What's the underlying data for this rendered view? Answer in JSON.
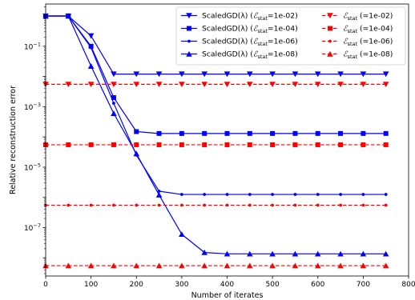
{
  "chart_data": {
    "type": "line",
    "title": "",
    "xlabel": "Number of iterates",
    "ylabel": "Relative reconstruction error",
    "xlim": [
      0,
      800
    ],
    "ylim": [
      2.5e-09,
      2.5
    ],
    "yscale": "log",
    "grid": false,
    "legend_position": "top-right",
    "legend_columns": 2,
    "x_ticks": [
      0,
      100,
      200,
      300,
      400,
      500,
      600,
      700,
      800
    ],
    "x_tick_labels": [
      "0",
      "100",
      "200",
      "300",
      "400",
      "500",
      "600",
      "700",
      "800"
    ],
    "y_ticks": [
      1e-07,
      1e-05,
      0.001,
      0.1
    ],
    "y_tick_labels": [
      {
        "base": "10",
        "exp": "−7"
      },
      {
        "base": "10",
        "exp": "−5"
      },
      {
        "base": "10",
        "exp": "−3"
      },
      {
        "base": "10",
        "exp": "−1"
      }
    ],
    "x": [
      0,
      50,
      100,
      150,
      200,
      250,
      300,
      350,
      400,
      450,
      500,
      550,
      600,
      650,
      700,
      750
    ],
    "series": [
      {
        "legend_prefix": "ScaledGD(λ) (",
        "legend_sub": "stat",
        "legend_suffix": "=1e-02)",
        "color": "#0000ff",
        "linestyle": "solid",
        "marker": "triangle-down",
        "values": [
          1,
          1,
          0.22,
          0.012,
          0.012,
          0.012,
          0.012,
          0.012,
          0.012,
          0.012,
          0.012,
          0.012,
          0.012,
          0.012,
          0.012,
          0.012
        ]
      },
      {
        "legend_prefix": "ScaledGD(λ) (",
        "legend_sub": "stat",
        "legend_suffix": "=1e-04)",
        "color": "#0000ff",
        "linestyle": "solid",
        "marker": "square",
        "values": [
          1,
          1,
          0.1,
          0.002,
          0.00015,
          0.00013,
          0.00013,
          0.00013,
          0.00013,
          0.00013,
          0.00013,
          0.00013,
          0.00013,
          0.00013,
          0.00013,
          0.00013
        ]
      },
      {
        "legend_prefix": "ScaledGD(λ) (",
        "legend_sub": "stat",
        "legend_suffix": "=1e-06)",
        "color": "#0000ff",
        "linestyle": "solid",
        "marker": "dot",
        "values": [
          1,
          1,
          0.09,
          0.0013,
          2.5e-05,
          1.6e-06,
          1.25e-06,
          1.25e-06,
          1.25e-06,
          1.25e-06,
          1.25e-06,
          1.25e-06,
          1.25e-06,
          1.25e-06,
          1.25e-06,
          1.25e-06
        ]
      },
      {
        "legend_prefix": "ScaledGD(λ) (",
        "legend_sub": "stat",
        "legend_suffix": "=1e-08)",
        "color": "#0000ff",
        "linestyle": "solid",
        "marker": "triangle-up",
        "values": [
          1,
          1,
          0.022,
          0.0006,
          2.8e-05,
          1.2e-06,
          6e-08,
          1.5e-08,
          1.35e-08,
          1.35e-08,
          1.35e-08,
          1.35e-08,
          1.35e-08,
          1.35e-08,
          1.35e-08,
          1.35e-08
        ]
      },
      {
        "legend_prefix": "",
        "legend_sub": "stat",
        "legend_suffix": " (=1e-02)",
        "color": "#ff0000",
        "linestyle": "dashed",
        "marker": "triangle-down",
        "values": [
          0.0055,
          0.0055,
          0.0055,
          0.0055,
          0.0055,
          0.0055,
          0.0055,
          0.0055,
          0.0055,
          0.0055,
          0.0055,
          0.0055,
          0.0055,
          0.0055,
          0.0055,
          0.0055
        ]
      },
      {
        "legend_prefix": "",
        "legend_sub": "stat",
        "legend_suffix": " (=1e-04)",
        "color": "#ff0000",
        "linestyle": "dashed",
        "marker": "square",
        "values": [
          5.5e-05,
          5.5e-05,
          5.5e-05,
          5.5e-05,
          5.5e-05,
          5.5e-05,
          5.5e-05,
          5.5e-05,
          5.5e-05,
          5.5e-05,
          5.5e-05,
          5.5e-05,
          5.5e-05,
          5.5e-05,
          5.5e-05,
          5.5e-05
        ]
      },
      {
        "legend_prefix": "",
        "legend_sub": "stat",
        "legend_suffix": " (=1e-06)",
        "color": "#ff0000",
        "linestyle": "dashed",
        "marker": "dot",
        "values": [
          5.5e-07,
          5.5e-07,
          5.5e-07,
          5.5e-07,
          5.5e-07,
          5.5e-07,
          5.5e-07,
          5.5e-07,
          5.5e-07,
          5.5e-07,
          5.5e-07,
          5.5e-07,
          5.5e-07,
          5.5e-07,
          5.5e-07,
          5.5e-07
        ]
      },
      {
        "legend_prefix": "",
        "legend_sub": "stat",
        "legend_suffix": " (=1e-08)",
        "color": "#ff0000",
        "linestyle": "dashed",
        "marker": "triangle-up",
        "values": [
          5.5e-09,
          5.5e-09,
          5.5e-09,
          5.5e-09,
          5.5e-09,
          5.5e-09,
          5.5e-09,
          5.5e-09,
          5.5e-09,
          5.5e-09,
          5.5e-09,
          5.5e-09,
          5.5e-09,
          5.5e-09,
          5.5e-09,
          5.5e-09
        ]
      }
    ]
  }
}
